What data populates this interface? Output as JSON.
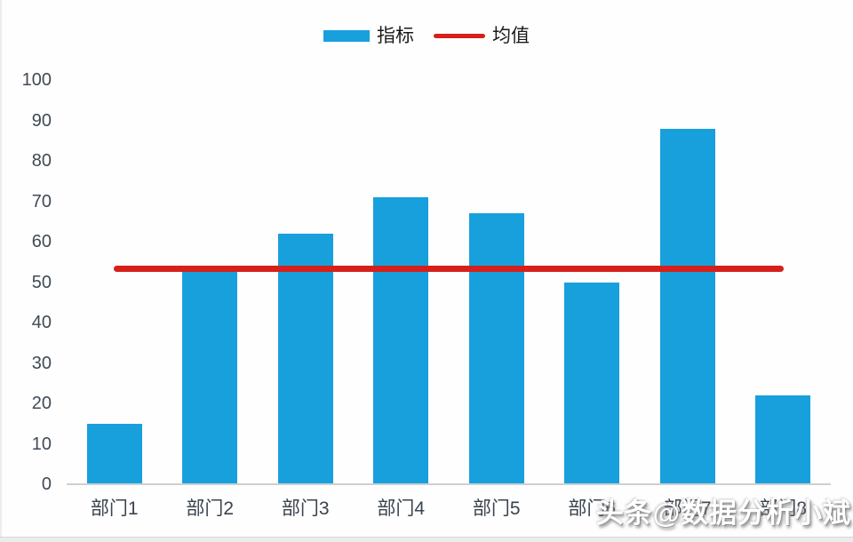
{
  "chart_data": {
    "type": "bar",
    "title": "",
    "categories": [
      "部门1",
      "部门2",
      "部门3",
      "部门4",
      "部门5",
      "部门6",
      "部门7",
      "部门8"
    ],
    "series": [
      {
        "name": "指标",
        "type": "bar",
        "color": "#18a0dd",
        "values": [
          15,
          53,
          62,
          71,
          67,
          50,
          88,
          22
        ]
      },
      {
        "name": "均值",
        "type": "line",
        "color": "#d6201a",
        "value": 53.5
      }
    ],
    "xlabel": "",
    "ylabel": "",
    "ylim": [
      0,
      100
    ],
    "yticks": [
      0,
      10,
      20,
      30,
      40,
      50,
      60,
      70,
      80,
      90,
      100
    ],
    "grid": false,
    "legend_position": "top"
  },
  "watermark": {
    "text": "头条@数据分析小斌"
  },
  "colors": {
    "bar_blue": "#18a0dd",
    "line_red": "#d6201a",
    "axis_text": "#3f4a57",
    "axis_line": "#cfcfcf"
  }
}
